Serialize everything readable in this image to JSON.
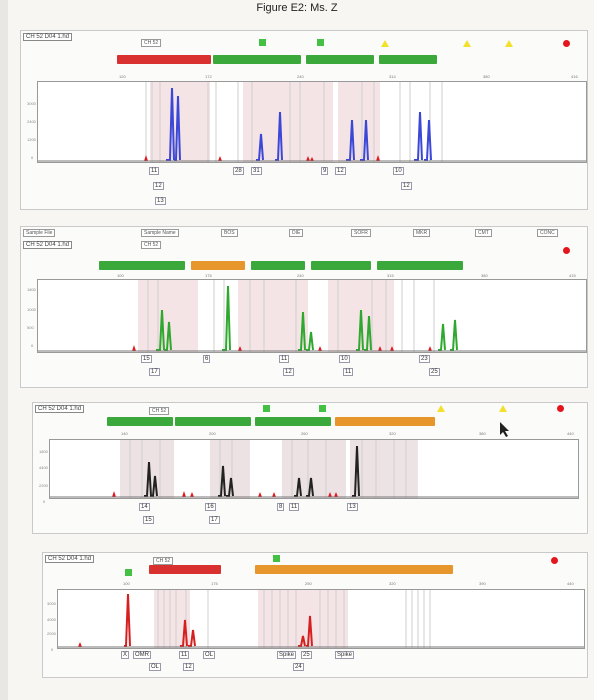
{
  "figure_title": "Figure E2: Ms. Z",
  "panels": [
    {
      "title": "CH 52 D04 1.hd",
      "sample_name": "CH 52",
      "header_labels": [],
      "scale_labels": [
        "120",
        "172",
        "240",
        "314",
        "380",
        "416"
      ],
      "y_labels": [
        "3000",
        "2400",
        "1200",
        "0"
      ],
      "peak_color": "#3b47d6",
      "alleles": [
        "11",
        "12",
        "13",
        "28",
        "31",
        "9",
        "12",
        "10",
        "12"
      ]
    },
    {
      "title": "CH 52 D04 1.hd",
      "sample_label": "Sample File",
      "sample_name": "CH 52",
      "sample_name_label": "Sample Name",
      "header_labels": [
        "BOS",
        "DIE",
        "SOFR",
        "MKR",
        "CMT",
        "CONC"
      ],
      "scale_labels": [
        "100",
        "175",
        "240",
        "315",
        "380",
        "415"
      ],
      "y_labels": [
        "1800",
        "1000",
        "500",
        "0"
      ],
      "peak_color": "#2ea82e",
      "alleles": [
        "15",
        "17",
        "6",
        "11",
        "12",
        "10",
        "11",
        "23",
        "25"
      ]
    },
    {
      "title": "CH 52 D04 1.hd",
      "sample_name": "CH 52",
      "header_labels": [],
      "scale_labels": [
        "140",
        "200",
        "260",
        "320",
        "380",
        "440"
      ],
      "y_labels": [
        "1800",
        "4400",
        "2200",
        "0"
      ],
      "peak_color": "#222222",
      "alleles": [
        "14",
        "15",
        "16",
        "17",
        "8",
        "11",
        "13"
      ]
    },
    {
      "title": "CH 52 D04 1.hd",
      "sample_name": "CH 52",
      "header_labels": [],
      "scale_labels": [
        "100",
        "175",
        "250",
        "320",
        "390",
        "440"
      ],
      "y_labels": [
        "3000",
        "4000",
        "2000",
        "0"
      ],
      "peak_color": "#d61f1f",
      "alleles": [
        "X",
        "OMR",
        "11",
        "OL",
        "OL",
        "12",
        "Spike",
        "25",
        "24",
        "Spike"
      ]
    }
  ]
}
